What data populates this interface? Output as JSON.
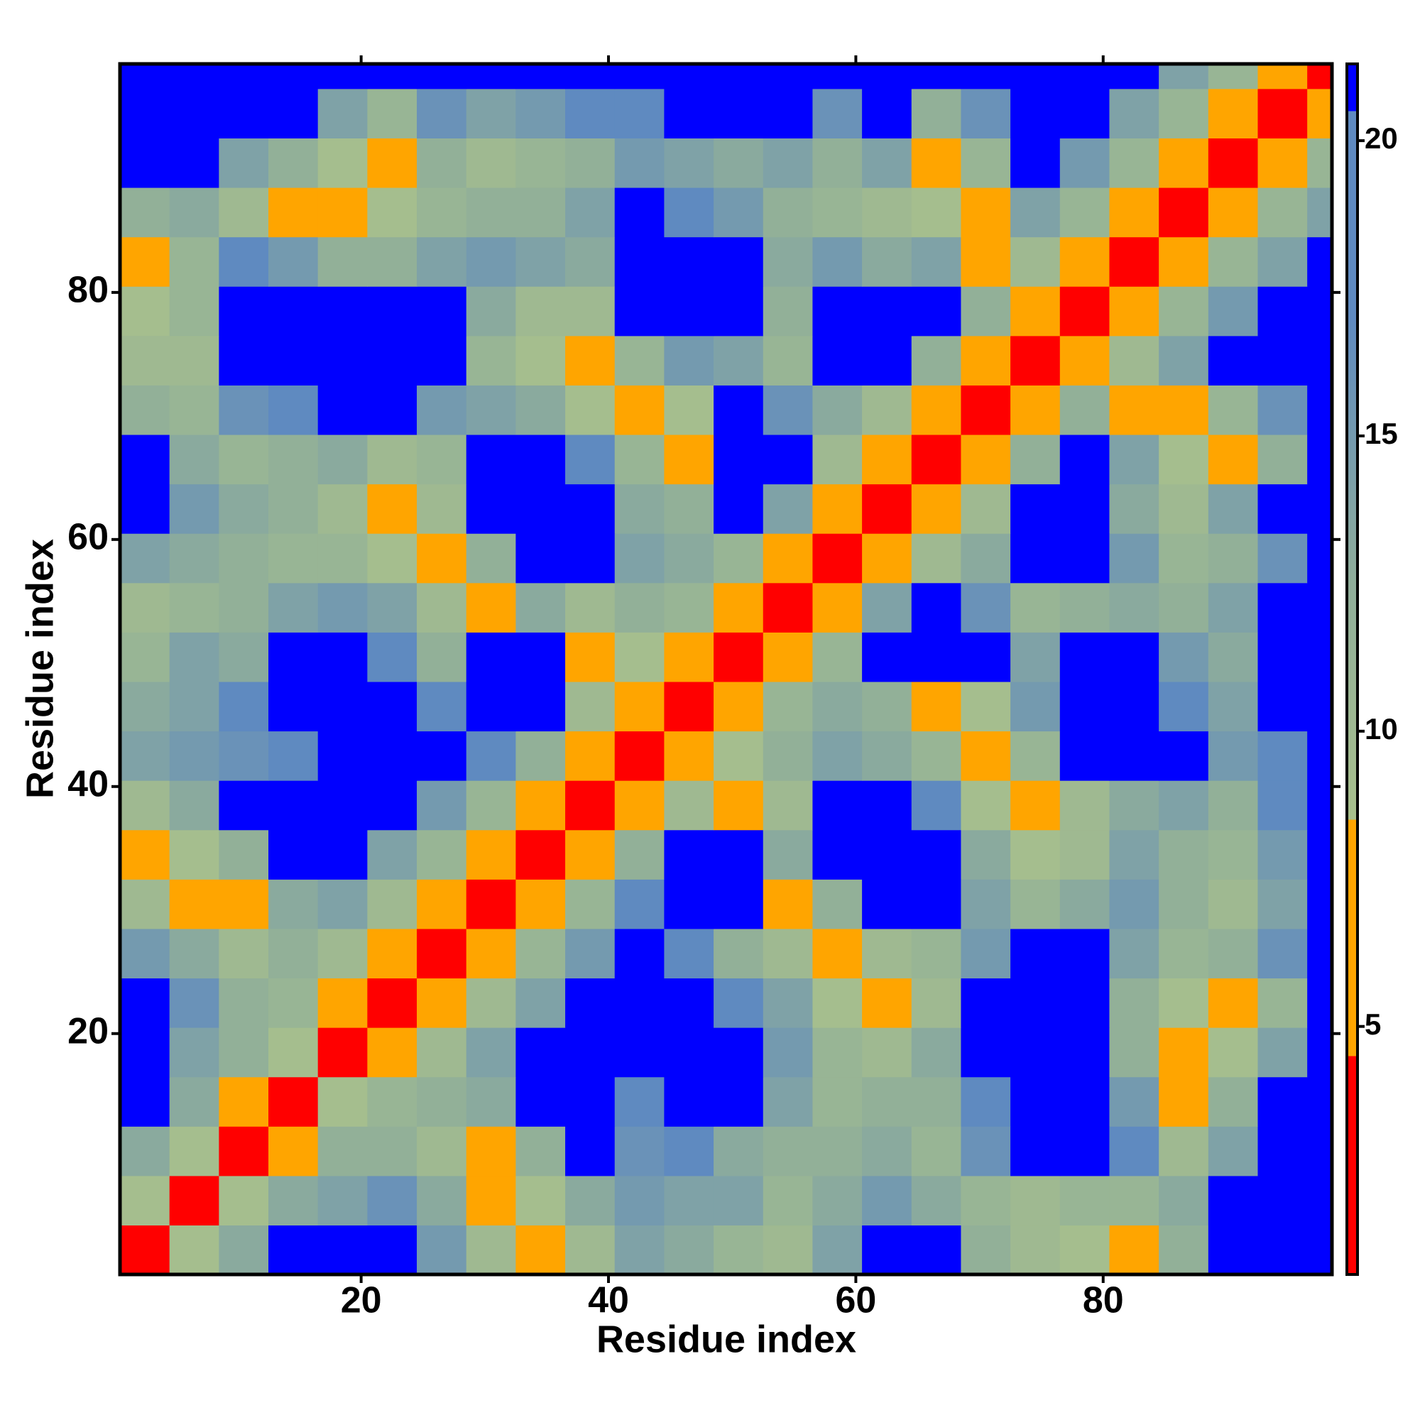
{
  "chart_data": {
    "type": "heatmap",
    "x_label": "Residue index",
    "y_label": "Residue index",
    "x": [
      2.5,
      6.5,
      10.5,
      14.5,
      18.5,
      22.5,
      26.5,
      30.5,
      34.5,
      38.5,
      42.5,
      46.5,
      50.5,
      54.5,
      58.5,
      62.5,
      66.5,
      70.5,
      74.5,
      78.5,
      82.5,
      86.5,
      90.5,
      94.5,
      98.5
    ],
    "y": [
      2.5,
      6.5,
      10.5,
      14.5,
      18.5,
      22.5,
      26.5,
      30.5,
      34.5,
      38.5,
      42.5,
      46.5,
      50.5,
      54.5,
      58.5,
      62.5,
      66.5,
      70.5,
      74.5,
      78.5,
      82.5,
      86.5,
      90.5,
      94.5,
      98.5
    ],
    "z": [
      [
        3.8,
        9,
        13,
        21,
        21,
        21,
        15,
        10,
        6.5,
        10,
        14,
        13,
        11,
        10,
        14,
        21,
        21,
        12,
        10,
        9,
        8,
        12,
        21,
        21,
        21
      ],
      [
        9,
        3.8,
        9,
        13,
        14,
        16,
        13,
        8,
        9,
        13,
        15,
        14,
        14,
        11,
        13,
        15,
        13,
        11,
        10,
        11,
        11,
        13,
        21,
        21,
        21
      ],
      [
        13,
        9,
        3.8,
        6.5,
        12,
        12,
        10,
        6.5,
        12,
        21,
        16,
        17,
        13,
        12,
        12,
        13,
        11,
        16,
        21,
        21,
        18,
        10,
        14,
        21,
        21
      ],
      [
        21,
        13,
        6.5,
        3.8,
        9,
        11,
        12,
        13,
        21,
        21,
        18,
        21,
        21,
        14,
        11,
        12,
        12,
        17,
        21,
        21,
        15,
        6.5,
        12,
        21,
        21
      ],
      [
        21,
        14,
        12,
        9,
        3.8,
        7,
        10,
        14,
        21,
        21,
        21,
        21,
        21,
        15,
        11,
        10,
        13,
        21,
        21,
        21,
        12,
        6.5,
        9,
        14,
        21
      ],
      [
        21,
        16,
        12,
        11,
        7,
        3.8,
        7,
        10,
        14,
        21,
        21,
        21,
        18,
        14,
        9,
        6.5,
        10,
        21,
        21,
        21,
        12,
        9,
        6.5,
        11,
        21
      ],
      [
        15,
        13,
        10,
        12,
        10,
        7,
        3.8,
        8,
        11,
        15,
        21,
        17,
        12,
        10,
        6.5,
        10,
        11,
        15,
        21,
        21,
        14,
        11,
        12,
        16,
        21
      ],
      [
        10,
        8,
        6.5,
        13,
        14,
        10,
        8,
        3.8,
        8,
        11,
        17,
        21,
        21,
        6.5,
        12,
        21,
        21,
        14,
        11,
        13,
        15,
        12,
        10,
        14,
        21
      ],
      [
        6.5,
        9,
        12,
        21,
        21,
        14,
        11,
        8,
        3.8,
        8,
        12,
        21,
        21,
        13,
        21,
        21,
        21,
        13,
        9,
        10,
        14,
        12,
        11,
        15,
        21
      ],
      [
        10,
        13,
        21,
        21,
        21,
        21,
        15,
        11,
        8,
        3.8,
        8,
        10,
        6.5,
        10,
        21,
        21,
        18,
        9,
        6.5,
        10,
        13,
        14,
        12,
        17,
        21
      ],
      [
        14,
        15,
        16,
        18,
        21,
        21,
        21,
        17,
        12,
        8,
        3.8,
        6.5,
        9,
        12,
        14,
        13,
        11,
        6.5,
        11,
        21,
        21,
        21,
        15,
        19,
        21
      ],
      [
        13,
        14,
        17,
        21,
        21,
        21,
        17,
        21,
        21,
        10,
        6.5,
        3.8,
        8,
        11,
        13,
        12,
        6.5,
        9,
        15,
        21,
        21,
        18,
        14,
        21,
        21
      ],
      [
        11,
        14,
        13,
        21,
        21,
        18,
        12,
        21,
        21,
        6.5,
        9,
        8,
        3.8,
        8,
        11,
        21,
        21,
        21,
        14,
        21,
        21,
        15,
        13,
        21,
        21
      ],
      [
        10,
        11,
        12,
        14,
        15,
        14,
        10,
        6.5,
        13,
        10,
        12,
        11,
        8,
        3.8,
        8,
        14,
        21,
        16,
        11,
        12,
        13,
        12,
        14,
        21,
        21
      ],
      [
        14,
        13,
        12,
        11,
        11,
        9,
        6.5,
        12,
        21,
        21,
        14,
        13,
        11,
        8,
        3.8,
        7,
        10,
        13,
        21,
        21,
        15,
        11,
        12,
        16,
        21
      ],
      [
        21,
        15,
        13,
        12,
        10,
        6.5,
        10,
        21,
        21,
        21,
        13,
        12,
        21,
        14,
        7,
        3.8,
        6.5,
        10,
        21,
        21,
        13,
        10,
        14,
        21,
        21
      ],
      [
        21,
        13,
        11,
        12,
        13,
        10,
        11,
        21,
        21,
        18,
        11,
        6.5,
        21,
        21,
        10,
        6.5,
        3.8,
        8,
        12,
        21,
        14,
        9,
        6.5,
        12,
        21
      ],
      [
        12,
        11,
        16,
        17,
        21,
        21,
        15,
        14,
        13,
        9,
        6.5,
        9,
        21,
        16,
        13,
        10,
        8,
        3.8,
        8,
        12,
        6.5,
        6.5,
        11,
        16,
        21
      ],
      [
        10,
        10,
        21,
        21,
        21,
        21,
        21,
        11,
        9,
        6.5,
        11,
        15,
        14,
        11,
        21,
        21,
        12,
        8,
        3.8,
        6.5,
        10,
        14,
        21,
        21,
        21
      ],
      [
        9,
        11,
        21,
        21,
        21,
        21,
        21,
        13,
        10,
        10,
        21,
        21,
        21,
        12,
        21,
        21,
        21,
        12,
        6.5,
        3.8,
        8,
        11,
        15,
        21,
        21
      ],
      [
        8,
        11,
        18,
        15,
        12,
        12,
        14,
        15,
        14,
        13,
        21,
        21,
        21,
        13,
        15,
        13,
        14,
        6.5,
        10,
        8,
        3.8,
        8,
        11,
        14,
        21
      ],
      [
        12,
        13,
        10,
        6.5,
        6.5,
        9,
        11,
        12,
        12,
        14,
        21,
        18,
        15,
        12,
        11,
        10,
        9,
        6.5,
        14,
        11,
        8,
        3.8,
        8,
        11,
        14
      ],
      [
        21,
        21,
        14,
        12,
        9,
        6.5,
        12,
        10,
        11,
        12,
        15,
        14,
        13,
        14,
        12,
        14,
        6.5,
        11,
        21,
        15,
        11,
        8,
        3.8,
        8,
        11
      ],
      [
        21,
        21,
        21,
        21,
        14,
        11,
        16,
        14,
        15,
        17,
        19,
        21,
        21,
        21,
        16,
        21,
        12,
        16,
        21,
        21,
        14,
        11,
        8,
        3.8,
        8
      ],
      [
        21,
        21,
        21,
        21,
        21,
        21,
        21,
        21,
        21,
        21,
        21,
        21,
        21,
        21,
        21,
        21,
        21,
        21,
        21,
        21,
        21,
        14,
        11,
        8,
        3.8
      ]
    ],
    "xlim": [
      0.5,
      98.5
    ],
    "ylim": [
      0.5,
      98.5
    ],
    "xticks": [
      20,
      40,
      60,
      80
    ],
    "yticks": [
      20,
      40,
      60,
      80
    ],
    "colorbar": {
      "lim": [
        0.8,
        21.3
      ],
      "ticks": [
        5,
        10,
        15,
        20
      ]
    },
    "colorscale": [
      [
        0.8,
        "#ff0000"
      ],
      [
        4.5,
        "#ff0000"
      ],
      [
        4.5,
        "#ffa500"
      ],
      [
        8.5,
        "#ffa500"
      ],
      [
        8.5,
        "#a8c08c"
      ],
      [
        12.5,
        "#8fae9a"
      ],
      [
        17,
        "#5f8ac0"
      ],
      [
        20.5,
        "#5f8ac0"
      ],
      [
        20.5,
        "#0000ff"
      ],
      [
        21.3,
        "#0000ff"
      ]
    ]
  }
}
